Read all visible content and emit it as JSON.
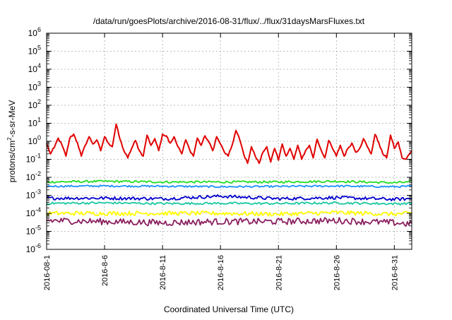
{
  "chart_data": {
    "type": "line",
    "title": "/data/run/goesPlots/archive/2016-08-31/flux/../flux/31daysMarsFluxes.txt",
    "xlabel": "Coordinated Universal Time (UTC)",
    "ylabel": {
      "prefix": "protons/cm",
      "sup": "2",
      "suffix": "-s-sr-MeV"
    },
    "xlim": [
      "2016-08-01",
      "2016-09-01T12:00"
    ],
    "ylim": [
      1e-06,
      1000000.0
    ],
    "yscale": "log",
    "grid": true,
    "legend": "none",
    "x_ticks": [
      "2016-08-1",
      "2016-8-6",
      "2016-8-11",
      "2016-8-16",
      "2016-8-21",
      "2016-8-26",
      "2016-8-31"
    ],
    "y_ticks": [
      {
        "base": "10",
        "exp": "-6"
      },
      {
        "base": "10",
        "exp": "-5"
      },
      {
        "base": "10",
        "exp": "-4"
      },
      {
        "base": "10",
        "exp": "-3"
      },
      {
        "base": "10",
        "exp": "-2"
      },
      {
        "base": "10",
        "exp": "-1"
      },
      {
        "base": "10",
        "exp": "0"
      },
      {
        "base": "10",
        "exp": "1"
      },
      {
        "base": "10",
        "exp": "2"
      },
      {
        "base": "10",
        "exp": "3"
      },
      {
        "base": "10",
        "exp": "4"
      },
      {
        "base": "10",
        "exp": "5"
      },
      {
        "base": "10",
        "exp": "6"
      }
    ],
    "series": [
      {
        "color": "#e00000",
        "values": [
          [
            "2016-08-01T00:00",
            0.75
          ],
          [
            "2016-08-01T08:00",
            0.2
          ],
          [
            "2016-08-01T16:00",
            0.45
          ],
          [
            "2016-08-02T00:00",
            1.5
          ],
          [
            "2016-08-02T08:00",
            0.6
          ],
          [
            "2016-08-02T16:00",
            0.15
          ],
          [
            "2016-08-03T00:00",
            1.5
          ],
          [
            "2016-08-03T08:00",
            2.5
          ],
          [
            "2016-08-03T16:00",
            0.8
          ],
          [
            "2016-08-04T00:00",
            0.15
          ],
          [
            "2016-08-04T08:00",
            0.6
          ],
          [
            "2016-08-04T16:00",
            1.8
          ],
          [
            "2016-08-05T00:00",
            0.7
          ],
          [
            "2016-08-05T08:00",
            1.2
          ],
          [
            "2016-08-05T16:00",
            0.3
          ],
          [
            "2016-08-06T00:00",
            1.8
          ],
          [
            "2016-08-06T08:00",
            0.8
          ],
          [
            "2016-08-06T16:00",
            0.5
          ],
          [
            "2016-08-07T00:00",
            9
          ],
          [
            "2016-08-07T08:00",
            1.3
          ],
          [
            "2016-08-07T16:00",
            0.3
          ],
          [
            "2016-08-08T00:00",
            0.12
          ],
          [
            "2016-08-08T08:00",
            0.4
          ],
          [
            "2016-08-08T16:00",
            1.1
          ],
          [
            "2016-08-09T00:00",
            0.3
          ],
          [
            "2016-08-09T08:00",
            0.15
          ],
          [
            "2016-08-09T16:00",
            2.2
          ],
          [
            "2016-08-10T00:00",
            0.6
          ],
          [
            "2016-08-10T08:00",
            1.4
          ],
          [
            "2016-08-10T16:00",
            0.3
          ],
          [
            "2016-08-11T00:00",
            2.5
          ],
          [
            "2016-08-11T08:00",
            2
          ],
          [
            "2016-08-11T16:00",
            0.8
          ],
          [
            "2016-08-12T00:00",
            1.8
          ],
          [
            "2016-08-12T08:00",
            0.5
          ],
          [
            "2016-08-12T16:00",
            0.2
          ],
          [
            "2016-08-13T00:00",
            1.2
          ],
          [
            "2016-08-13T08:00",
            0.35
          ],
          [
            "2016-08-13T16:00",
            0.15
          ],
          [
            "2016-08-14T00:00",
            1.5
          ],
          [
            "2016-08-14T08:00",
            0.6
          ],
          [
            "2016-08-14T16:00",
            2
          ],
          [
            "2016-08-15T00:00",
            0.9
          ],
          [
            "2016-08-15T08:00",
            0.3
          ],
          [
            "2016-08-15T16:00",
            1.8
          ],
          [
            "2016-08-16T00:00",
            0.7
          ],
          [
            "2016-08-16T08:00",
            0.25
          ],
          [
            "2016-08-16T16:00",
            0.15
          ],
          [
            "2016-08-17T00:00",
            0.6
          ],
          [
            "2016-08-17T08:00",
            4
          ],
          [
            "2016-08-17T16:00",
            1.2
          ],
          [
            "2016-08-18T00:00",
            0.2
          ],
          [
            "2016-08-18T08:00",
            0.06
          ],
          [
            "2016-08-18T16:00",
            0.5
          ],
          [
            "2016-08-19T00:00",
            0.15
          ],
          [
            "2016-08-19T08:00",
            0.06
          ],
          [
            "2016-08-19T16:00",
            0.25
          ],
          [
            "2016-08-20T00:00",
            0.5
          ],
          [
            "2016-08-20T08:00",
            0.07
          ],
          [
            "2016-08-20T16:00",
            0.4
          ],
          [
            "2016-08-21T00:00",
            0.09
          ],
          [
            "2016-08-21T08:00",
            0.7
          ],
          [
            "2016-08-21T16:00",
            0.15
          ],
          [
            "2016-08-22T00:00",
            0.4
          ],
          [
            "2016-08-22T08:00",
            0.1
          ],
          [
            "2016-08-22T16:00",
            0.6
          ],
          [
            "2016-08-23T00:00",
            0.1
          ],
          [
            "2016-08-23T08:00",
            0.3
          ],
          [
            "2016-08-23T16:00",
            0.6
          ],
          [
            "2016-08-24T00:00",
            0.12
          ],
          [
            "2016-08-24T08:00",
            1.3
          ],
          [
            "2016-08-24T16:00",
            0.35
          ],
          [
            "2016-08-25T00:00",
            0.12
          ],
          [
            "2016-08-25T08:00",
            1.1
          ],
          [
            "2016-08-25T16:00",
            0.4
          ],
          [
            "2016-08-26T00:00",
            0.15
          ],
          [
            "2016-08-26T08:00",
            0.6
          ],
          [
            "2016-08-26T16:00",
            0.15
          ],
          [
            "2016-08-27T00:00",
            0.4
          ],
          [
            "2016-08-27T08:00",
            0.8
          ],
          [
            "2016-08-27T16:00",
            0.25
          ],
          [
            "2016-08-28T00:00",
            0.4
          ],
          [
            "2016-08-28T08:00",
            1.4
          ],
          [
            "2016-08-28T16:00",
            0.5
          ],
          [
            "2016-08-29T00:00",
            0.2
          ],
          [
            "2016-08-29T08:00",
            2.4
          ],
          [
            "2016-08-29T16:00",
            0.8
          ],
          [
            "2016-08-30T00:00",
            0.2
          ],
          [
            "2016-08-30T08:00",
            0.12
          ],
          [
            "2016-08-30T16:00",
            2.2
          ],
          [
            "2016-08-31T00:00",
            0.4
          ],
          [
            "2016-08-31T08:00",
            0.9
          ],
          [
            "2016-08-31T16:00",
            0.12
          ],
          [
            "2016-09-01T00:00",
            0.1
          ],
          [
            "2016-09-01T12:00",
            0.3
          ]
        ]
      },
      {
        "color": "#22dd22",
        "values": [
          [
            "2016-08-01",
            0.0055
          ],
          [
            "2016-08-06",
            0.006
          ],
          [
            "2016-08-11",
            0.0055
          ],
          [
            "2016-08-16",
            0.0055
          ],
          [
            "2016-08-21",
            0.0055
          ],
          [
            "2016-08-26",
            0.006
          ],
          [
            "2016-08-31",
            0.005
          ],
          [
            "2016-09-01T12:00",
            0.0055
          ]
        ]
      },
      {
        "color": "#1e90ff",
        "values": [
          [
            "2016-08-01",
            0.0032
          ],
          [
            "2016-08-06",
            0.0033
          ],
          [
            "2016-08-11",
            0.0032
          ],
          [
            "2016-08-16",
            0.003
          ],
          [
            "2016-08-21",
            0.0031
          ],
          [
            "2016-08-26",
            0.0033
          ],
          [
            "2016-08-31",
            0.003
          ],
          [
            "2016-09-01T12:00",
            0.0032
          ]
        ]
      },
      {
        "color": "#0000cc",
        "values": [
          [
            "2016-08-01",
            0.0007
          ],
          [
            "2016-08-06",
            0.0007
          ],
          [
            "2016-08-11",
            0.00065
          ],
          [
            "2016-08-16",
            0.0009
          ],
          [
            "2016-08-21",
            0.00065
          ],
          [
            "2016-08-26",
            0.00075
          ],
          [
            "2016-08-31",
            0.0006
          ],
          [
            "2016-09-01T12:00",
            0.00065
          ]
        ]
      },
      {
        "color": "#1ac8a0",
        "values": [
          [
            "2016-08-01",
            0.00036
          ],
          [
            "2016-08-06",
            0.00038
          ],
          [
            "2016-08-11",
            0.00035
          ],
          [
            "2016-08-16",
            0.00036
          ],
          [
            "2016-08-21",
            0.00035
          ],
          [
            "2016-08-26",
            0.00038
          ],
          [
            "2016-08-31",
            0.00034
          ],
          [
            "2016-09-01T12:00",
            0.00036
          ]
        ]
      },
      {
        "color": "#ffff00",
        "values": [
          [
            "2016-08-01",
            0.0001
          ],
          [
            "2016-08-06",
            0.0001
          ],
          [
            "2016-08-11",
            0.0001
          ],
          [
            "2016-08-16",
            0.0001
          ],
          [
            "2016-08-21",
            9e-05
          ],
          [
            "2016-08-26",
            0.00011
          ],
          [
            "2016-08-31",
            9e-05
          ],
          [
            "2016-09-01T12:00",
            0.0001
          ]
        ]
      },
      {
        "color": "#8b2060",
        "values": [
          [
            "2016-08-01",
            4e-05
          ],
          [
            "2016-08-06",
            3.5e-05
          ],
          [
            "2016-08-11",
            3e-05
          ],
          [
            "2016-08-16",
            3.5e-05
          ],
          [
            "2016-08-21",
            3.5e-05
          ],
          [
            "2016-08-26",
            4e-05
          ],
          [
            "2016-08-31",
            3e-05
          ],
          [
            "2016-09-01T12:00",
            2.5e-05
          ]
        ]
      }
    ]
  }
}
